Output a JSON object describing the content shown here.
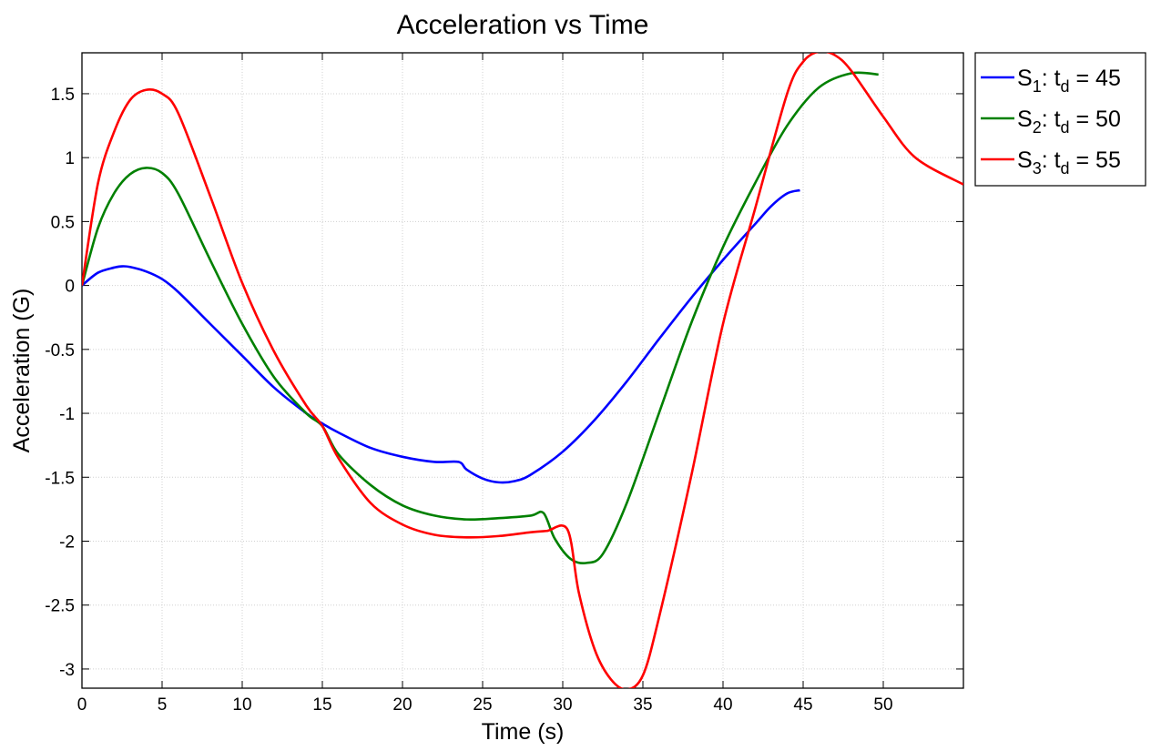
{
  "chart_data": {
    "type": "line",
    "title": "Acceleration vs Time",
    "xlabel": "Time (s)",
    "ylabel": "Acceleration (G)",
    "xlim": [
      0,
      55
    ],
    "ylim": [
      -3.15,
      1.82
    ],
    "xticks": [
      0,
      5,
      10,
      15,
      20,
      25,
      30,
      35,
      40,
      45,
      50
    ],
    "yticks": [
      -3,
      -2.5,
      -2,
      -1.5,
      -1,
      -0.5,
      0,
      0.5,
      1,
      1.5
    ],
    "grid": true,
    "legend_position": "outside-top-right",
    "series": [
      {
        "name": "S1: td = 45",
        "name_parts": {
          "base": "S",
          "sub": "1",
          "mid": ": t",
          "sub2": "d",
          "rest": " = 45"
        },
        "color": "#0000ff",
        "x": [
          0,
          1,
          2,
          2.5,
          3,
          4,
          5,
          6,
          8,
          10,
          12,
          14,
          15,
          16,
          18,
          20,
          22,
          23.5,
          24,
          25,
          26,
          27,
          28,
          30,
          32,
          34,
          36,
          38,
          40,
          42,
          43,
          44,
          44.8
        ],
        "y": [
          0,
          0.1,
          0.14,
          0.15,
          0.145,
          0.11,
          0.05,
          -0.05,
          -0.3,
          -0.55,
          -0.8,
          -1.0,
          -1.08,
          -1.15,
          -1.27,
          -1.34,
          -1.38,
          -1.38,
          -1.44,
          -1.51,
          -1.54,
          -1.53,
          -1.48,
          -1.3,
          -1.05,
          -0.75,
          -0.42,
          -0.1,
          0.2,
          0.48,
          0.62,
          0.72,
          0.745
        ]
      },
      {
        "name": "S2: td = 50",
        "name_parts": {
          "base": "S",
          "sub": "2",
          "mid": ": t",
          "sub2": "d",
          "rest": " = 50"
        },
        "color": "#008000",
        "x": [
          0,
          1,
          2,
          3,
          4,
          5,
          6,
          8,
          10,
          12,
          14,
          15,
          16,
          18,
          20,
          22,
          24,
          26,
          28,
          28.8,
          29.5,
          30.5,
          31.5,
          32.5,
          34,
          36,
          38,
          40,
          42,
          44,
          46,
          48,
          49.7
        ],
        "y": [
          0,
          0.45,
          0.72,
          0.87,
          0.92,
          0.88,
          0.72,
          0.2,
          -0.3,
          -0.72,
          -1.0,
          -1.1,
          -1.32,
          -1.56,
          -1.72,
          -1.8,
          -1.83,
          -1.82,
          -1.8,
          -1.78,
          -1.98,
          -2.14,
          -2.17,
          -2.1,
          -1.7,
          -1.0,
          -0.3,
          0.3,
          0.8,
          1.25,
          1.55,
          1.66,
          1.65
        ]
      },
      {
        "name": "S3: td = 55",
        "name_parts": {
          "base": "S",
          "sub": "3",
          "mid": ": t",
          "sub2": "d",
          "rest": " = 55"
        },
        "color": "#ff0000",
        "x": [
          0,
          1,
          2,
          3,
          4,
          5,
          6,
          8,
          10,
          12,
          14,
          15,
          16,
          18,
          20,
          22,
          24,
          26,
          28,
          29,
          30.3,
          31,
          32,
          33,
          34,
          35,
          36,
          38,
          40,
          42,
          44,
          45,
          46,
          47,
          48,
          50,
          52,
          55
        ],
        "y": [
          0,
          0.8,
          1.2,
          1.45,
          1.53,
          1.5,
          1.35,
          0.7,
          0.02,
          -0.52,
          -0.94,
          -1.1,
          -1.35,
          -1.7,
          -1.87,
          -1.95,
          -1.97,
          -1.96,
          -1.93,
          -1.92,
          -1.91,
          -2.4,
          -2.85,
          -3.08,
          -3.16,
          -3.05,
          -2.6,
          -1.5,
          -0.3,
          0.6,
          1.5,
          1.75,
          1.83,
          1.8,
          1.68,
          1.32,
          1.0,
          0.79
        ]
      }
    ]
  }
}
